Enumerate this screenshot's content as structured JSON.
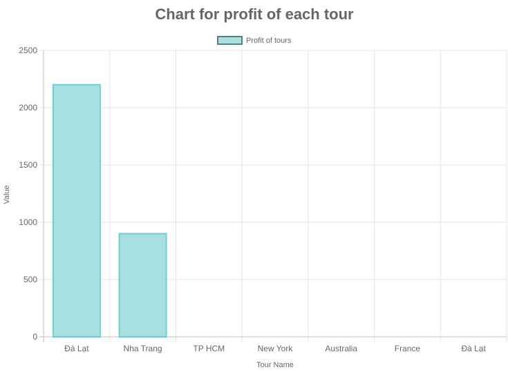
{
  "chart_data": {
    "type": "bar",
    "title": "Chart for profit of each tour",
    "xlabel": "Tour Name",
    "ylabel": "Value",
    "categories": [
      "Đà Lạt",
      "Nha Trang",
      "TP HCM",
      "New York",
      "Australia",
      "France",
      "Đà Lạt"
    ],
    "series": [
      {
        "name": "Profit of tours",
        "values": [
          2200,
          900,
          0,
          0,
          0,
          0,
          0
        ]
      }
    ],
    "ylim": [
      0,
      2500
    ],
    "yticks": [
      0,
      500,
      1000,
      1500,
      2000,
      2500
    ],
    "grid": true,
    "legend_position": "top-center",
    "colors": {
      "bar_fill": "#a8dfe0",
      "bar_stroke": "#6ccfcf",
      "grid": "#e5e5e5",
      "axis": "#bdbdbd",
      "text": "#666666"
    }
  }
}
